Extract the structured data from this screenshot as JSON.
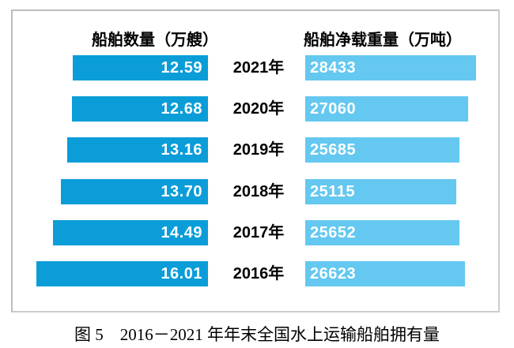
{
  "chart_data": {
    "type": "bar",
    "variant": "paired-horizontal-tornado",
    "categories": [
      "2021年",
      "2020年",
      "2019年",
      "2018年",
      "2017年",
      "2016年"
    ],
    "series": [
      {
        "name": "船舶数量（万艘）",
        "side": "left",
        "values": [
          12.59,
          12.68,
          13.16,
          13.7,
          14.49,
          16.01
        ],
        "labels": [
          "12.59",
          "12.68",
          "13.16",
          "13.70",
          "14.49",
          "16.01"
        ],
        "color": "#0a9dd8",
        "label_color": "#ffffff"
      },
      {
        "name": "船舶净载重量（万吨）",
        "side": "right",
        "values": [
          28433,
          27060,
          25685,
          25115,
          25652,
          26623
        ],
        "labels": [
          "28433",
          "27060",
          "25685",
          "25115",
          "25652",
          "26623"
        ],
        "color": "#64c8f0",
        "label_color": "#ffffff"
      }
    ],
    "title": "图 5　2016－2021 年年末全国水上运输船舶拥有量",
    "xlabel": "",
    "ylabel": "",
    "axis_lines": "none",
    "grid": false,
    "legend_position": "column-headers-top",
    "value_labels_inside_bars": true,
    "bars_scaled_from_zero": true
  },
  "caption": "图 5　2016－2021 年年末全国水上运输船舶拥有量",
  "colors": {
    "left_bar": "#0a9dd8",
    "right_bar": "#64c8f0",
    "bar_label": "#ffffff",
    "frame_border": "#c8c8c8",
    "text": "#000000",
    "background": "#ffffff"
  }
}
